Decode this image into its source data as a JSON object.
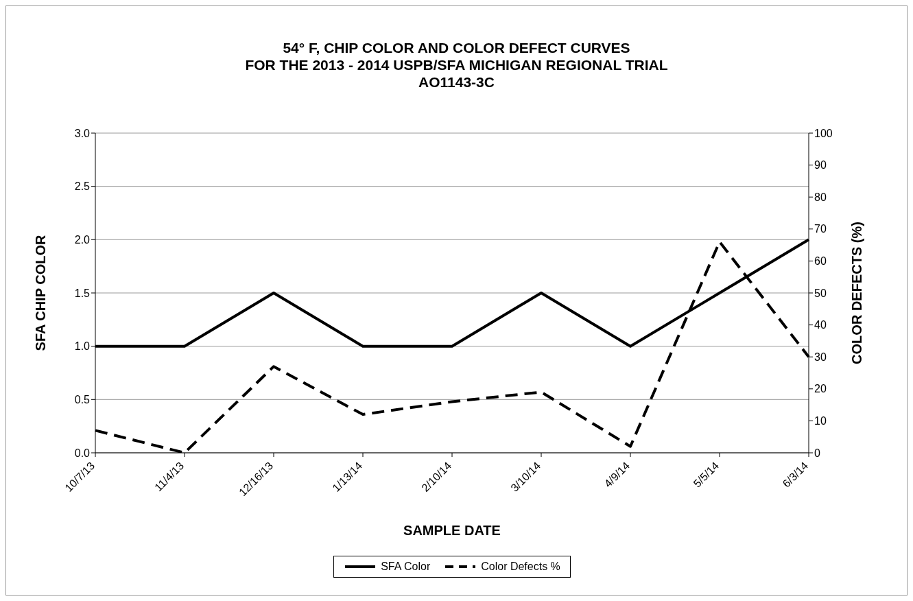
{
  "chart_data": {
    "type": "line",
    "title": "54° F, CHIP COLOR AND COLOR DEFECT CURVES\nFOR THE 2013 - 2014 USPB/SFA MICHIGAN REGIONAL TRIAL\nAO1143-3C",
    "xlabel": "SAMPLE DATE",
    "ylabel": "SFA CHIP COLOR",
    "y2label": "COLOR DEFECTS (%)",
    "categories": [
      "10/7/13",
      "11/4/13",
      "12/16/13",
      "1/13/14",
      "2/10/14",
      "3/10/14",
      "4/9/14",
      "5/5/14",
      "6/3/14"
    ],
    "series": [
      {
        "name": "SFA Color",
        "color": "#000000",
        "line_style": "solid",
        "values": [
          1.0,
          1.0,
          1.5,
          1.0,
          1.0,
          1.5,
          1.0,
          1.5,
          2.0
        ]
      },
      {
        "name": "Color Defects %",
        "color": "#000000",
        "line_style": "dashed",
        "axis": "y2",
        "values": [
          7,
          0,
          27,
          12,
          16,
          19,
          2,
          66,
          30
        ]
      }
    ],
    "ylim": [
      0,
      3
    ],
    "yticks": [
      {
        "value": 0,
        "label": "0.0"
      },
      {
        "value": 0.5,
        "label": "0.5"
      },
      {
        "value": 1,
        "label": "1.0"
      },
      {
        "value": 1.5,
        "label": "1.5"
      },
      {
        "value": 2,
        "label": "2.0"
      },
      {
        "value": 2.5,
        "label": "2.5"
      },
      {
        "value": 3,
        "label": "3.0"
      }
    ],
    "y2lim": [
      0,
      100
    ],
    "y2ticks": [
      0,
      10,
      20,
      30,
      40,
      50,
      60,
      70,
      80,
      90,
      100
    ],
    "grid": "y",
    "legend": "bottom",
    "marker": "none"
  }
}
